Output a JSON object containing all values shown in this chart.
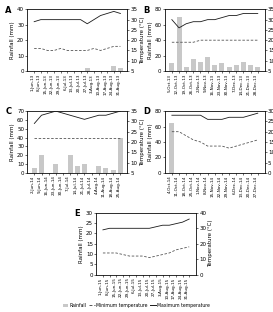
{
  "panels": [
    {
      "label": "A",
      "dates": [
        "1-Jun-13",
        "8-Jun-13",
        "15-Jun-13",
        "22-Jun-13",
        "29-Jun-13",
        "6-Jul-13",
        "13-Jul-13",
        "20-Jul-13",
        "27-Jul-13",
        "3-Aug-13",
        "10-Aug-13",
        "17-Aug-13",
        "24-Aug-13",
        "31-Aug-13"
      ],
      "rainfall": [
        0,
        0,
        0,
        0,
        0,
        0,
        0,
        0,
        2,
        0,
        0,
        0,
        3,
        2
      ],
      "tmax": [
        29,
        30,
        30,
        30,
        30,
        30,
        30,
        30,
        28,
        30,
        32,
        33,
        34,
        33
      ],
      "tmin": [
        16,
        16,
        15,
        15,
        16,
        15,
        15,
        15,
        15,
        16,
        15,
        16,
        17,
        17
      ],
      "ylim_rain": [
        0,
        40
      ],
      "ylim_temp": [
        5,
        35
      ],
      "yticks_rain": [
        0,
        10,
        20,
        30,
        40
      ],
      "yticks_temp": [
        5,
        10,
        15,
        20,
        25,
        30,
        35
      ]
    },
    {
      "label": "B",
      "dates": [
        "5-Oct-13",
        "12-Oct-13",
        "19-Oct-13",
        "26-Oct-13",
        "2-Nov-13",
        "9-Nov-13",
        "16-Nov-13",
        "23-Nov-13",
        "30-Nov-13",
        "7-Dec-13",
        "14-Dec-13",
        "21-Dec-13",
        "28-Dec-13"
      ],
      "rainfall": [
        10,
        70,
        5,
        15,
        12,
        18,
        8,
        10,
        5,
        8,
        12,
        8,
        5
      ],
      "tmax": [
        30,
        26,
        28,
        29,
        29,
        30,
        30,
        31,
        32,
        32,
        33,
        33,
        33
      ],
      "tmin": [
        19,
        19,
        19,
        19,
        20,
        20,
        20,
        20,
        20,
        20,
        20,
        20,
        20
      ],
      "ylim_rain": [
        0,
        80
      ],
      "ylim_temp": [
        5,
        35
      ],
      "yticks_rain": [
        0,
        20,
        40,
        60,
        80
      ],
      "yticks_temp": [
        5,
        10,
        15,
        20,
        25,
        30,
        35
      ]
    },
    {
      "label": "C",
      "dates": [
        "2-Jun-14",
        "9-Jun-14",
        "16-Jun-14",
        "23-Jun-14",
        "30-Jun-14",
        "7-Jul-14",
        "14-Jul-14",
        "21-Jul-14",
        "28-Jul-14",
        "4-Aug-14",
        "11-Aug-14",
        "18-Aug-14",
        "25-Aug-14"
      ],
      "rainfall": [
        5,
        20,
        0,
        10,
        0,
        20,
        8,
        10,
        0,
        8,
        5,
        3,
        40
      ],
      "tmax": [
        29,
        33,
        34,
        35,
        34,
        33,
        32,
        31,
        32,
        33,
        33,
        34,
        35
      ],
      "tmin": [
        22,
        22,
        22,
        22,
        22,
        22,
        22,
        22,
        22,
        22,
        22,
        22,
        22
      ],
      "ylim_rain": [
        0,
        70
      ],
      "ylim_temp": [
        5,
        35
      ],
      "yticks_rain": [
        0,
        10,
        20,
        30,
        40,
        50,
        60,
        70
      ],
      "yticks_temp": [
        5,
        10,
        15,
        20,
        25,
        30,
        35
      ]
    },
    {
      "label": "D",
      "dates": [
        "4-Oct-14",
        "11-Oct-14",
        "18-Oct-14",
        "25-Oct-14",
        "1-Nov-14",
        "8-Nov-14",
        "15-Nov-14",
        "22-Nov-14",
        "29-Nov-14",
        "6-Dec-14",
        "13-Dec-14",
        "20-Dec-14",
        "27-Dec-14"
      ],
      "rainfall": [
        65,
        0,
        0,
        0,
        0,
        0,
        0,
        0,
        0,
        0,
        0,
        0,
        0
      ],
      "tmax": [
        28,
        28,
        28,
        28,
        28,
        26,
        26,
        26,
        27,
        27,
        27,
        28,
        29
      ],
      "tmin": [
        20,
        20,
        18,
        16,
        15,
        13,
        13,
        13,
        12,
        13,
        14,
        15,
        16
      ],
      "ylim_rain": [
        0,
        80
      ],
      "ylim_temp": [
        0,
        30
      ],
      "yticks_rain": [
        0,
        20,
        40,
        60,
        80
      ],
      "yticks_temp": [
        0,
        5,
        10,
        15,
        20,
        25,
        30
      ]
    },
    {
      "label": "E",
      "dates": [
        "1-Jun-15",
        "8-Jun-15",
        "15-Jun-15",
        "22-Jun-15",
        "29-Jun-15",
        "6-Jul-15",
        "13-Jul-15",
        "20-Jul-15",
        "27-Jul-15",
        "3-Aug-15",
        "10-Aug-15",
        "17-Aug-15",
        "24-Aug-15",
        "31-Aug-15"
      ],
      "rainfall": [
        0,
        0,
        0,
        0,
        0,
        0,
        0,
        0,
        0,
        0,
        0,
        0,
        0,
        0
      ],
      "tmax": [
        29,
        30,
        30,
        30,
        30,
        30,
        30,
        30,
        31,
        32,
        32,
        33,
        34,
        36
      ],
      "tmin": [
        14,
        14,
        14,
        13,
        12,
        12,
        12,
        11,
        12,
        13,
        14,
        16,
        17,
        18
      ],
      "ylim_rain": [
        0,
        30
      ],
      "ylim_temp": [
        0,
        40
      ],
      "yticks_rain": [
        0,
        5,
        10,
        15,
        20,
        25,
        30
      ],
      "yticks_temp": [
        0,
        10,
        20,
        30,
        40
      ]
    }
  ],
  "bar_color": "#c8c8c8",
  "tmax_color": "#1a1a1a",
  "tmin_color": "#555555",
  "legend_labels": [
    "Rainfall",
    "Minimum temperature",
    "Maximum temperature"
  ],
  "ylabel_left": "Rainfall (mm)",
  "ylabel_right": "Temperature (°C)",
  "fontsize": 4.5
}
